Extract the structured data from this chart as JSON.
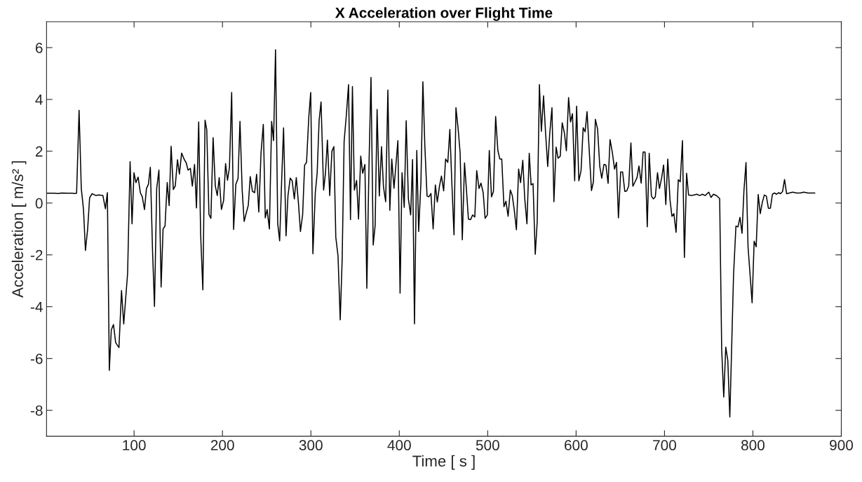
{
  "chart_data": {
    "type": "line",
    "title": "X Acceleration over Flight Time",
    "xlabel": "Time [ s ]",
    "ylabel": "Acceleration [ m/s² ]",
    "xlim": [
      1,
      900
    ],
    "xticks": [
      100,
      200,
      300,
      400,
      500,
      600,
      700,
      800,
      900
    ],
    "ylim": [
      -9,
      7
    ],
    "yticks": [
      -8,
      -6,
      -4,
      -2,
      0,
      2,
      4,
      6
    ],
    "grid": false,
    "series": [
      {
        "color": "#000000",
        "x": [
          1,
          10,
          14,
          18,
          25,
          30,
          33,
          35,
          37.8,
          40.3,
          42.8,
          45.0,
          47.5,
          49.7,
          52.5,
          56.9,
          60.0,
          64.7,
          67.6,
          69.8,
          72.0,
          74.2,
          76.7,
          79.2,
          82.9,
          85.8,
          88.3,
          92.7,
          95.5,
          97.7,
          99.9,
          102.1,
          104.6,
          107.1,
          109.3,
          111.8,
          114.0,
          116.2,
          118.4,
          120.9,
          123.1,
          125.6,
          128.1,
          130.6,
          132.8,
          135.0,
          137.5,
          139.7,
          141.9,
          144.4,
          146.6,
          149.1,
          151.3,
          153.8,
          156.8,
          159.0,
          161.1,
          163.7,
          165.9,
          168.4,
          170.6,
          173.1,
          175.3,
          177.8,
          180.3,
          182.2,
          184.7,
          186.9,
          189.4,
          191.9,
          194.1,
          196.3,
          198.8,
          201.3,
          203.5,
          205.7,
          207.9,
          210.4,
          212.6,
          215.1,
          217.6,
          219.8,
          222.3,
          224.5,
          227.0,
          229.2,
          231.4,
          233.9,
          236.4,
          238.6,
          241.1,
          243.6,
          246.2,
          248.4,
          250.5,
          253.1,
          255.6,
          257.8,
          260.0,
          262.5,
          264.7,
          266.9,
          269.1,
          271.9,
          274.1,
          276.6,
          278.8,
          281.3,
          283.5,
          286.0,
          288.2,
          290.7,
          292.9,
          295.1,
          297.6,
          299.8,
          302.3,
          305.0,
          307.1,
          309.3,
          311.5,
          314.4,
          316.5,
          318.7,
          321.3,
          323.8,
          326.0,
          328.2,
          330.7,
          333.2,
          335.4,
          337.6,
          340.1,
          342.6,
          344.8,
          347.0,
          349.2,
          351.7,
          353.9,
          356.4,
          358.6,
          361.1,
          363.3,
          365.8,
          368.0,
          370.5,
          372.7,
          374.9,
          377.4,
          379.9,
          382.1,
          384.6,
          387.1,
          389.3,
          391.5,
          394.0,
          396.2,
          398.4,
          400.9,
          403.1,
          405.6,
          407.8,
          410.3,
          412.9,
          415.0,
          417.2,
          419.8,
          421.9,
          424.5,
          426.7,
          428.9,
          431.4,
          433.6,
          435.8,
          438.3,
          440.8,
          443.0,
          445.5,
          447.7,
          450.2,
          452.4,
          454.9,
          457.2,
          459.4,
          461.9,
          464.1,
          466.6,
          468.8,
          471.3,
          473.8,
          476.0,
          478.2,
          480.7,
          482.9,
          485.4,
          487.6,
          490.2,
          492.4,
          494.9,
          497.1,
          499.6,
          501.8,
          504.3,
          506.5,
          509.0,
          511.5,
          513.7,
          515.9,
          518.4,
          520.6,
          523.1,
          525.6,
          527.8,
          530.0,
          532.5,
          535.0,
          537.2,
          539.7,
          541.9,
          544.4,
          547.0,
          549.1,
          551.3,
          553.8,
          556.0,
          558.5,
          560.7,
          563.2,
          565.4,
          567.9,
          570.1,
          572.7,
          574.9,
          577.4,
          579.6,
          582.1,
          584.3,
          586.8,
          589.0,
          591.5,
          593.7,
          595.9,
          598.4,
          600.6,
          603.1,
          605.6,
          608.0,
          610.2,
          612.4,
          614.9,
          617.4,
          619.6,
          621.8,
          624.3,
          626.8,
          629.0,
          631.5,
          633.7,
          636.2,
          638.4,
          641.0,
          643.5,
          645.7,
          647.9,
          650.4,
          652.6,
          655.1,
          657.3,
          659.5,
          662.0,
          664.2,
          666.7,
          668.9,
          671.1,
          673.6,
          675.8,
          678.0,
          680.5,
          682.7,
          685.2,
          687.4,
          689.6,
          692.1,
          694.3,
          696.8,
          699.0,
          701.5,
          703.7,
          706.2,
          708.4,
          710.6,
          713.1,
          715.6,
          717.8,
          720.3,
          722.5,
          725.0,
          727.2,
          730.4,
          733.5,
          736.6,
          739.8,
          742.9,
          746.0,
          750.1,
          752.6,
          755.4,
          759.1,
          762.4,
          764.7,
          767.0,
          769.3,
          771.6,
          773.9,
          776.2,
          778.1,
          780.8,
          783.1,
          785.4,
          787.7,
          789.9,
          792.2,
          794.5,
          796.8,
          799.1,
          801.4,
          803.7,
          806.0,
          808.3,
          810.6,
          812.9,
          815.2,
          817.5,
          819.8,
          822.1,
          824.4,
          826.7,
          829.0,
          831.2,
          833.5,
          835.8,
          838.1,
          841.1,
          845.0,
          849.3,
          853.5,
          857.5,
          862.4,
          866.6,
          869.9
        ],
        "values": [
          0.38,
          0.38,
          0.37,
          0.39,
          0.38,
          0.38,
          0.37,
          0.38,
          3.58,
          0.56,
          -0.25,
          -1.83,
          -1.0,
          0.2,
          0.36,
          0.29,
          0.31,
          0.29,
          -0.22,
          0.4,
          -6.46,
          -4.9,
          -4.69,
          -5.39,
          -5.58,
          -3.38,
          -4.67,
          -2.71,
          1.6,
          -0.8,
          1.17,
          0.79,
          1.0,
          0.4,
          0.24,
          -0.25,
          0.56,
          0.72,
          1.38,
          -1.85,
          -3.99,
          0.56,
          1.27,
          -3.24,
          -1.0,
          -0.89,
          0.79,
          -0.1,
          2.19,
          0.52,
          0.66,
          1.67,
          1.12,
          1.93,
          1.68,
          1.55,
          1.27,
          1.34,
          0.65,
          1.49,
          -0.19,
          3.13,
          -1.21,
          -3.35,
          3.2,
          2.84,
          -0.44,
          -0.59,
          2.52,
          0.66,
          0.29,
          0.98,
          -0.25,
          0.1,
          1.52,
          0.88,
          1.38,
          4.27,
          -1.02,
          0.72,
          0.95,
          3.15,
          0.5,
          -0.71,
          -0.37,
          -0.09,
          1.02,
          0.45,
          0.4,
          1.11,
          -0.35,
          1.93,
          3.04,
          -0.57,
          -0.25,
          -1.0,
          3.15,
          2.41,
          5.92,
          -0.8,
          -1.46,
          0.82,
          2.9,
          -1.27,
          0.29,
          0.96,
          0.86,
          0.16,
          0.98,
          -0.03,
          -1.1,
          -0.44,
          1.46,
          1.57,
          3.29,
          4.27,
          -1.96,
          0.4,
          1.15,
          3.18,
          3.9,
          0.5,
          1.15,
          2.43,
          0.29,
          2.0,
          2.18,
          -1.32,
          -2.04,
          -4.51,
          -2.17,
          2.38,
          3.39,
          4.57,
          -0.64,
          4.5,
          0.5,
          0.87,
          -0.62,
          1.81,
          1.15,
          1.49,
          -3.29,
          1.57,
          4.85,
          -1.62,
          -0.86,
          3.61,
          0.27,
          2.18,
          0.63,
          0.05,
          4.36,
          -0.28,
          1.7,
          0.57,
          1.47,
          2.41,
          -3.48,
          1.17,
          -0.17,
          3.18,
          0.16,
          -0.46,
          1.68,
          -4.66,
          2.03,
          -1.1,
          0.82,
          4.68,
          2.22,
          0.27,
          0.24,
          0.37,
          -1.0,
          0.7,
          0.04,
          0.66,
          1.04,
          0.47,
          1.7,
          1.57,
          2.84,
          0.82,
          -1.23,
          3.68,
          2.86,
          1.95,
          -1.42,
          1.55,
          0.5,
          -0.62,
          -0.64,
          -0.46,
          -0.54,
          1.25,
          0.56,
          0.77,
          0.4,
          -0.59,
          -0.46,
          2.03,
          0.24,
          0.45,
          3.34,
          2.03,
          1.7,
          1.7,
          -0.14,
          0.07,
          -0.51,
          0.5,
          0.29,
          -0.25,
          -1.03,
          1.31,
          0.79,
          1.65,
          0.18,
          -0.8,
          1.92,
          0.7,
          0.75,
          -1.98,
          -0.73,
          4.57,
          2.77,
          4.14,
          2.75,
          1.41,
          2.64,
          3.68,
          0.05,
          2.16,
          1.73,
          1.81,
          3.1,
          2.7,
          2.02,
          4.07,
          3.13,
          3.45,
          0.86,
          3.74,
          0.86,
          1.25,
          2.91,
          2.75,
          3.53,
          2.0,
          0.48,
          0.82,
          3.23,
          2.86,
          1.41,
          0.96,
          1.49,
          1.47,
          0.76,
          2.45,
          1.95,
          1.31,
          1.57,
          -0.57,
          1.2,
          1.2,
          0.45,
          0.47,
          0.66,
          2.32,
          0.65,
          0.82,
          0.98,
          1.43,
          0.77,
          1.97,
          1.97,
          -0.92,
          1.92,
          0.27,
          0.16,
          0.24,
          1.17,
          0.56,
          0.98,
          1.47,
          -0.06,
          1.7,
          0.13,
          -0.51,
          -0.41,
          -1.13,
          0.9,
          0.82,
          2.41,
          -2.1,
          1.15,
          0.31,
          0.29,
          0.31,
          0.34,
          0.29,
          0.34,
          0.29,
          0.42,
          0.22,
          0.34,
          0.28,
          0.17,
          -5.67,
          -7.49,
          -5.56,
          -6.07,
          -8.26,
          -5.27,
          -2.77,
          -0.89,
          -0.92,
          -0.55,
          -1.17,
          0.5,
          1.56,
          -1.69,
          -2.77,
          -3.85,
          -1.47,
          -1.69,
          0.33,
          -0.41,
          0.02,
          0.31,
          0.27,
          -0.2,
          -0.2,
          0.34,
          0.39,
          0.34,
          0.4,
          0.36,
          0.44,
          0.91,
          0.36,
          0.39,
          0.42,
          0.39,
          0.39,
          0.42,
          0.39,
          0.39,
          0.39
        ]
      }
    ]
  }
}
